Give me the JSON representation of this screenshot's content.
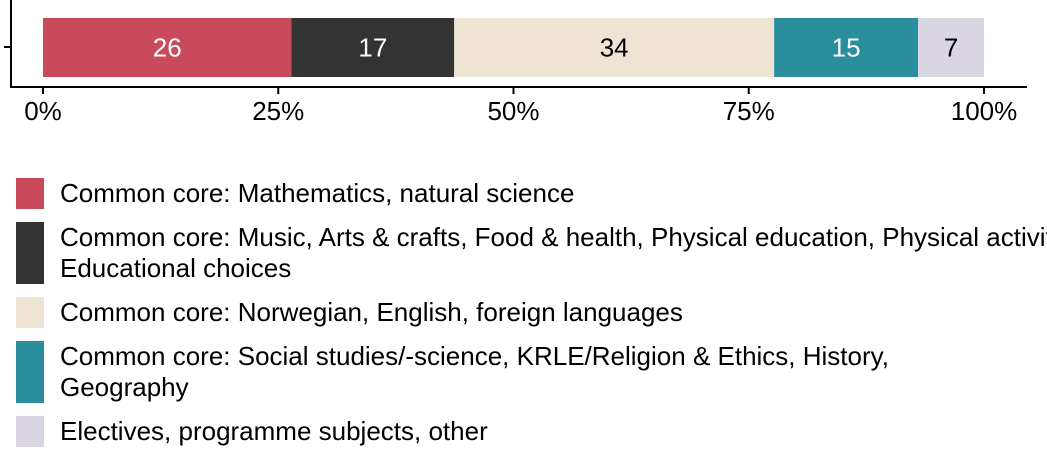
{
  "chart_data": {
    "type": "stacked-bar-horizontal",
    "series": [
      {
        "name": "Common core: Mathematics, natural science",
        "color": "#c94a5a",
        "values": [
          26.4
        ],
        "value_labels": [
          "26"
        ]
      },
      {
        "name": "Common core: Music, Arts & crafts, Food & health, Physical education, Physical activity, Educational choices",
        "color": "#333333",
        "values": [
          17.3
        ],
        "value_labels": [
          "17"
        ]
      },
      {
        "name": "Common core: Norwegian, English, foreign languages",
        "color": "#efe3d3",
        "values": [
          34.0
        ],
        "value_labels": [
          "34"
        ]
      },
      {
        "name": "Common core: Social studies/-science, KRLE/Religion & Ethics, History, Geography",
        "color": "#2b8e9d",
        "values": [
          15.3
        ],
        "value_labels": [
          "15"
        ]
      },
      {
        "name": "Electives, programme subjects, other",
        "color": "#dad5e2",
        "values": [
          7.0
        ],
        "value_labels": [
          "7"
        ]
      }
    ],
    "xlim": [
      0,
      100
    ],
    "xticks": [
      {
        "value": 0,
        "label": "0%"
      },
      {
        "value": 25,
        "label": "25%"
      },
      {
        "value": 50,
        "label": "50%"
      },
      {
        "value": 75,
        "label": "75%"
      },
      {
        "value": 100,
        "label": "100%"
      }
    ],
    "legend": "bottom"
  }
}
